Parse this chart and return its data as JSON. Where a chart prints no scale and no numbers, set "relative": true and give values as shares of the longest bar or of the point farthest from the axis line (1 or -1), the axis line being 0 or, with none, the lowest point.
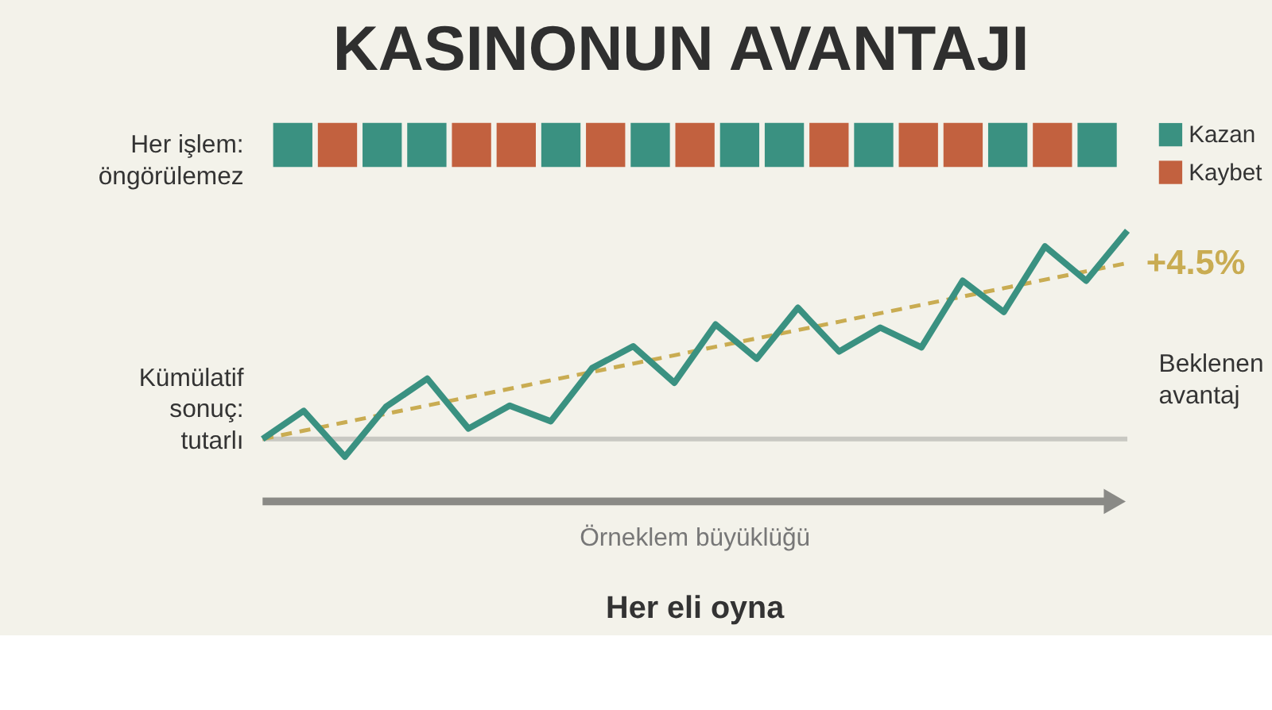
{
  "chart_data": [
    {
      "type": "bar",
      "title": "KASINONUN AVANTAJI",
      "relative": true,
      "stacked": true,
      "legend": "right",
      "categories": [
        null,
        null,
        null,
        null,
        null,
        null,
        null,
        null,
        null,
        null,
        null,
        null,
        null,
        null,
        null,
        null,
        null,
        null,
        null
      ],
      "series": [
        {
          "name": "Kazan",
          "color": "#3a9181",
          "values": [
            1,
            0,
            1,
            1,
            0,
            0,
            1,
            0,
            1,
            0,
            1,
            1,
            0,
            1,
            0,
            0,
            1,
            0,
            1
          ]
        },
        {
          "name": "Kaybet",
          "color": "#c2613f",
          "values": [
            0,
            1,
            0,
            0,
            1,
            1,
            0,
            1,
            0,
            1,
            0,
            0,
            1,
            0,
            1,
            1,
            0,
            1,
            0
          ]
        }
      ],
      "annotations": [
        "Her işlem: öngörülemez"
      ]
    },
    {
      "type": "line",
      "relative": true,
      "xlabel": "Örneklem büyüklüğü",
      "categories": [
        null,
        null,
        null,
        null,
        null,
        null,
        null,
        null,
        null,
        null,
        null,
        null,
        null,
        null,
        null,
        null,
        null,
        null,
        null,
        null,
        null,
        null
      ],
      "series": [
        {
          "color": "#3a9181",
          "line_style": "solid",
          "values": [
            0,
            0.135,
            -0.085,
            0.155,
            0.29,
            0.05,
            0.16,
            0.085,
            0.34,
            0.445,
            0.27,
            0.55,
            0.385,
            0.63,
            0.42,
            0.535,
            0.44,
            0.76,
            0.61,
            0.925,
            0.76,
            1
          ]
        },
        {
          "color": "#c9ac52",
          "line_style": "dashed",
          "values": [
            0,
            0.04,
            0.08,
            0.121,
            0.161,
            0.201,
            0.241,
            0.282,
            0.322,
            0.362,
            0.402,
            0.443,
            0.483,
            0.523,
            0.563,
            0.604,
            0.644,
            0.684,
            0.724,
            0.765,
            0.805,
            0.845
          ]
        }
      ],
      "annotations": [
        "Kümülatif sonuç: tutarlı",
        "+4.5%",
        "Beklenen avantaj",
        "Her eli oyna"
      ]
    }
  ]
}
